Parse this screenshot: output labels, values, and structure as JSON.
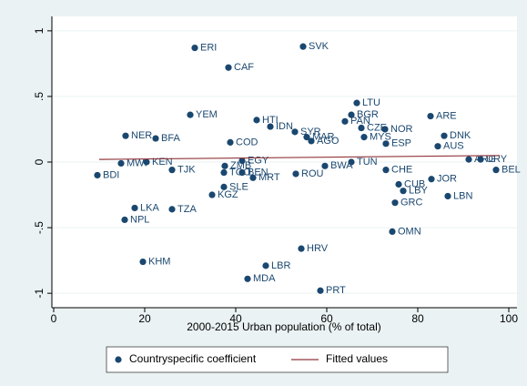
{
  "chart_data": {
    "type": "scatter",
    "xlabel": "2000-2015 Urban population (% of total)",
    "xlim": [
      -0.4,
      101.8
    ],
    "ylim": [
      -1.11,
      1.11
    ],
    "xticks": [
      0,
      20,
      40,
      60,
      80,
      100
    ],
    "yticks": [
      -1,
      {
        "value": -0.5,
        "label": "-.5"
      },
      0,
      {
        "value": 0.5,
        "label": ".5"
      },
      1
    ],
    "grid": true,
    "legend": "bottom",
    "series": [
      {
        "name": "Countryspecific coefficient",
        "type": "scatter",
        "color": "#1a476f",
        "labels": [
          "ERI",
          "SVK",
          "CAF",
          "YEM",
          "LTU",
          "BGR",
          "PAN",
          "ARE",
          "CZE",
          "NOR",
          "DNK",
          "MYS",
          "HTI",
          "IDN",
          "SYR",
          "MAR",
          "AGO",
          "BFA",
          "NER",
          "BDI",
          "LKA",
          "NPL",
          "KHM",
          "TZA",
          "TJK",
          "SLE",
          "KGZ",
          "MDA",
          "LBR",
          "HRV",
          "PRT",
          "MRT",
          "OMN",
          "GRC",
          "LBY",
          "CUB",
          "LBN",
          "JOR",
          "BEL",
          "URY",
          "ROU",
          "BWA",
          "CHE",
          "EGY",
          "TGO",
          "BEN",
          "ZMB",
          "KEN",
          "MWI",
          "COD",
          "ESP",
          "AUS",
          "ARG",
          "TUN"
        ],
        "x": [
          31,
          54.8,
          38.4,
          30,
          66.6,
          65.4,
          64,
          82.8,
          67.6,
          72.8,
          85.8,
          68.2,
          44.6,
          47.6,
          53,
          55.6,
          56.6,
          22.4,
          15.8,
          9.6,
          17.8,
          15.6,
          19.6,
          26,
          26,
          37.4,
          34.8,
          42.6,
          46.6,
          54.4,
          58.6,
          43.8,
          74.4,
          75,
          76.8,
          75.8,
          86.6,
          83,
          97.2,
          93.8,
          53.2,
          59.6,
          73,
          41.4,
          37.4,
          41.4,
          37.6,
          20.4,
          14.8,
          38.8,
          73,
          84.4,
          91.2,
          65.4
        ],
        "values": [
          0.87,
          0.88,
          0.72,
          0.36,
          0.45,
          0.36,
          0.31,
          0.35,
          0.26,
          0.25,
          0.2,
          0.19,
          0.32,
          0.27,
          0.23,
          0.19,
          0.16,
          0.18,
          0.2,
          -0.1,
          -0.35,
          -0.44,
          -0.76,
          -0.36,
          -0.06,
          -0.19,
          -0.25,
          -0.89,
          -0.79,
          -0.66,
          -0.98,
          -0.12,
          -0.53,
          -0.31,
          -0.22,
          -0.17,
          -0.26,
          -0.13,
          -0.06,
          0.02,
          -0.09,
          -0.03,
          -0.06,
          0.01,
          -0.08,
          -0.08,
          -0.03,
          0.0,
          -0.01,
          0.15,
          0.14,
          0.12,
          0.02,
          0.0
        ]
      },
      {
        "name": "Fitted values",
        "type": "line",
        "color": "#90353b",
        "x": [
          10,
          98
        ],
        "values": [
          0.02,
          0.05
        ]
      }
    ]
  }
}
